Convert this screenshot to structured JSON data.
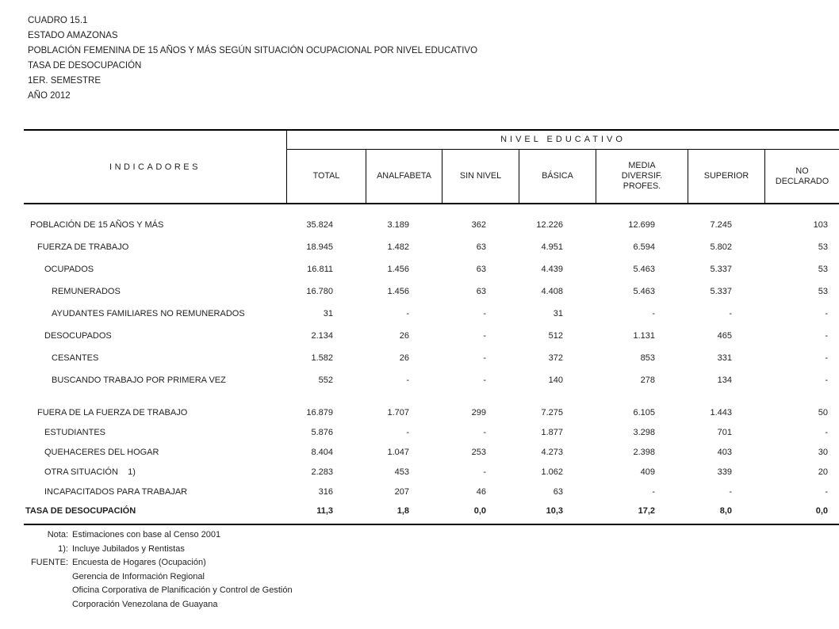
{
  "doc_header": {
    "line1": "CUADRO 15.1",
    "line2": "ESTADO AMAZONAS",
    "line3": "POBLACIÓN FEMENINA DE 15 AÑOS Y MÁS SEGÚN SITUACIÓN OCUPACIONAL POR NIVEL EDUCATIVO",
    "line4": "TASA DE DESOCUPACIÓN",
    "line5": "1ER. SEMESTRE",
    "line6": "AÑO 2012"
  },
  "table": {
    "indicators_header": "INDICADORES",
    "group_header": "NIVEL EDUCATIVO",
    "columns": [
      "TOTAL",
      "ANALFABETA",
      "SIN NIVEL",
      "BÁSICA",
      "MEDIA\nDIVERSIF.\nPROFES.",
      "SUPERIOR",
      "NO\nDECLARADO"
    ],
    "rows": [
      {
        "label": "POBLACIÓN DE 15 AÑOS Y MÁS",
        "indent": 0,
        "section": 1,
        "bold": false,
        "values": [
          "35.824",
          "3.189",
          "362",
          "12.226",
          "12.699",
          "7.245",
          "103"
        ]
      },
      {
        "label": "FUERZA DE TRABAJO",
        "indent": 1,
        "section": 1,
        "bold": false,
        "values": [
          "18.945",
          "1.482",
          "63",
          "4.951",
          "6.594",
          "5.802",
          "53"
        ]
      },
      {
        "label": "OCUPADOS",
        "indent": 2,
        "section": 1,
        "bold": false,
        "values": [
          "16.811",
          "1.456",
          "63",
          "4.439",
          "5.463",
          "5.337",
          "53"
        ]
      },
      {
        "label": "REMUNERADOS",
        "indent": 3,
        "section": 1,
        "bold": false,
        "values": [
          "16.780",
          "1.456",
          "63",
          "4.408",
          "5.463",
          "5.337",
          "53"
        ]
      },
      {
        "label": "AYUDANTES FAMILIARES NO REMUNERADOS",
        "indent": 3,
        "section": 1,
        "bold": false,
        "values": [
          "31",
          "-",
          "-",
          "31",
          "-",
          "-",
          "-"
        ]
      },
      {
        "label": "DESOCUPADOS",
        "indent": 2,
        "section": 1,
        "bold": false,
        "values": [
          "2.134",
          "26",
          "-",
          "512",
          "1.131",
          "465",
          "-"
        ]
      },
      {
        "label": "CESANTES",
        "indent": 3,
        "section": 1,
        "bold": false,
        "values": [
          "1.582",
          "26",
          "-",
          "372",
          "853",
          "331",
          "-"
        ]
      },
      {
        "label": "BUSCANDO TRABAJO POR PRIMERA VEZ",
        "indent": 3,
        "section": 1,
        "bold": false,
        "values": [
          "552",
          "-",
          "-",
          "140",
          "278",
          "134",
          "-"
        ]
      },
      {
        "label": "FUERA DE LA FUERZA DE TRABAJO",
        "indent": 1,
        "section": 2,
        "bold": false,
        "gap_before": true,
        "values": [
          "16.879",
          "1.707",
          "299",
          "7.275",
          "6.105",
          "1.443",
          "50"
        ]
      },
      {
        "label": "ESTUDIANTES",
        "indent": 2,
        "section": 2,
        "bold": false,
        "values": [
          "5.876",
          "-",
          "-",
          "1.877",
          "3.298",
          "701",
          "-"
        ]
      },
      {
        "label": "QUEHACERES DEL HOGAR",
        "indent": 2,
        "section": 2,
        "bold": false,
        "values": [
          "8.404",
          "1.047",
          "253",
          "4.273",
          "2.398",
          "403",
          "30"
        ]
      },
      {
        "label": "OTRA SITUACIÓN    1)",
        "indent": 2,
        "section": 2,
        "bold": false,
        "values": [
          "2.283",
          "453",
          "-",
          "1.062",
          "409",
          "339",
          "20"
        ]
      },
      {
        "label": "INCAPACITADOS PARA TRABAJAR",
        "indent": 2,
        "section": 2,
        "bold": false,
        "values": [
          "316",
          "207",
          "46",
          "63",
          "-",
          "-",
          "-"
        ]
      },
      {
        "label": "TASA DE DESOCUPACIÓN",
        "indent": 0,
        "section": 2,
        "bold": true,
        "flush": true,
        "values": [
          "11,3",
          "1,8",
          "0,0",
          "10,3",
          "17,2",
          "8,0",
          "0,0"
        ]
      }
    ]
  },
  "footer": {
    "notes": [
      {
        "label": "Nota:",
        "text": "Estimaciones con base al Censo 2001"
      },
      {
        "label": "1):",
        "text": "Incluye Jubilados y Rentistas"
      },
      {
        "label": "FUENTE:",
        "text": "Encuesta de Hogares (Ocupación)"
      },
      {
        "label": "",
        "text": "Gerencia de Información Regional"
      },
      {
        "label": "",
        "text": "Oficina Corporativa de Planificación y Control de Gestión"
      },
      {
        "label": "",
        "text": "Corporación Venezolana de Guayana"
      }
    ]
  }
}
